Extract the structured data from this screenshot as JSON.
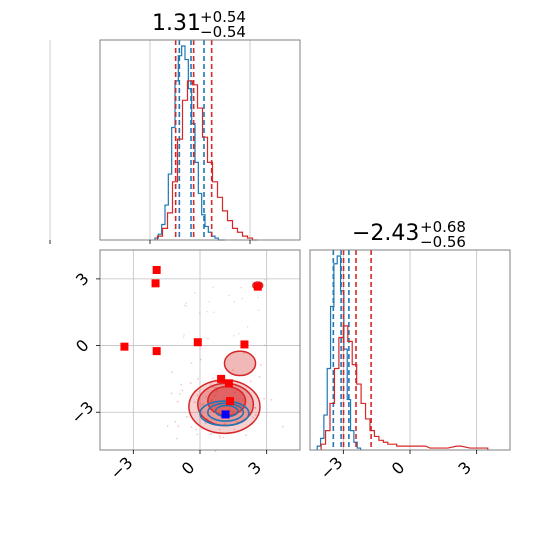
{
  "titles": {
    "p1": {
      "main": "1.31",
      "sup": "+0.54",
      "sub": "−0.54"
    },
    "p2": {
      "main": "−2.43",
      "sup": "+0.68",
      "sub": "−0.56"
    }
  },
  "colors": {
    "blue": "#1f77b4",
    "red": "#d62728",
    "frame": "#808080",
    "grid": "#c0c0c0"
  },
  "chart_data": [
    {
      "type": "histogram",
      "panel": "p1 marginal (top-left)",
      "xlim": [
        -1.5,
        4.5
      ],
      "xticks": [
        -3,
        0,
        3
      ],
      "grid": true,
      "series": [
        {
          "color": "#1f77b4",
          "bins_x": [
            0.2,
            0.3,
            0.4,
            0.5,
            0.6,
            0.7,
            0.8,
            0.9,
            1.0,
            1.1,
            1.2,
            1.3,
            1.4,
            1.5,
            1.6,
            1.7,
            1.8,
            1.9,
            2.0,
            2.1,
            2.2
          ],
          "heights": [
            0.01,
            0.03,
            0.08,
            0.18,
            0.34,
            0.58,
            0.82,
            0.95,
            1.0,
            0.93,
            0.78,
            0.6,
            0.4,
            0.24,
            0.13,
            0.07,
            0.04,
            0.02,
            0.01,
            0.0,
            0.0
          ],
          "quantile_lines": [
            0.88,
            1.23,
            1.62
          ]
        },
        {
          "color": "#d62728",
          "bins_x": [
            0.3,
            0.45,
            0.6,
            0.75,
            0.9,
            1.05,
            1.2,
            1.35,
            1.5,
            1.65,
            1.8,
            1.95,
            2.1,
            2.25,
            2.4,
            2.55,
            2.7,
            2.85,
            3.0,
            3.15
          ],
          "heights": [
            0.02,
            0.06,
            0.14,
            0.3,
            0.52,
            0.72,
            0.82,
            0.8,
            0.68,
            0.53,
            0.4,
            0.3,
            0.22,
            0.15,
            0.1,
            0.06,
            0.04,
            0.02,
            0.01,
            0.0
          ],
          "quantile_lines": [
            0.77,
            1.31,
            1.85
          ]
        }
      ]
    },
    {
      "type": "histogram",
      "panel": "p2 marginal (bottom-right)",
      "xlim": [
        -4.5,
        4.5
      ],
      "xticks": [
        -3,
        0,
        3
      ],
      "grid": true,
      "series": [
        {
          "color": "#1f77b4",
          "bins_x": [
            -4.1,
            -3.95,
            -3.8,
            -3.65,
            -3.5,
            -3.35,
            -3.2,
            -3.05,
            -2.9,
            -2.75,
            -2.6,
            -2.45,
            -2.3
          ],
          "heights": [
            0.02,
            0.06,
            0.18,
            0.42,
            0.74,
            0.96,
            1.0,
            0.82,
            0.52,
            0.26,
            0.1,
            0.04,
            0.01
          ],
          "quantile_lines": [
            -3.45,
            -3.1,
            -2.75
          ]
        },
        {
          "color": "#d62728",
          "bins_x": [
            -3.9,
            -3.7,
            -3.5,
            -3.3,
            -3.1,
            -2.9,
            -2.7,
            -2.5,
            -2.3,
            -2.1,
            -1.9,
            -1.7,
            -1.5,
            -1.3,
            -1.1,
            -0.9,
            -0.7,
            -0.5,
            -0.3,
            -0.1,
            0.1,
            0.3,
            0.6,
            1.0,
            1.6,
            2.2,
            2.8,
            3.4
          ],
          "heights": [
            0.03,
            0.1,
            0.24,
            0.42,
            0.58,
            0.64,
            0.56,
            0.44,
            0.34,
            0.24,
            0.16,
            0.1,
            0.07,
            0.05,
            0.04,
            0.03,
            0.03,
            0.02,
            0.02,
            0.02,
            0.02,
            0.02,
            0.02,
            0.01,
            0.01,
            0.02,
            0.01,
            0.01
          ],
          "quantile_lines": [
            -2.99,
            -2.43,
            -1.75
          ]
        }
      ]
    },
    {
      "type": "scatter",
      "panel": "2D contour (bottom-left)",
      "xlim": [
        -4.5,
        4.5
      ],
      "ylim": [
        -4.7,
        4.3
      ],
      "xticks": [
        -3,
        0,
        3
      ],
      "yticks": [
        -3,
        0,
        3
      ],
      "grid": true,
      "red_contours": [
        {
          "cx": 1.1,
          "cy": -2.75,
          "rx": 1.6,
          "ry": 1.2,
          "level": 3
        },
        {
          "cx": 1.15,
          "cy": -2.65,
          "rx": 1.25,
          "ry": 0.95,
          "level": 2
        },
        {
          "cx": 1.2,
          "cy": -2.5,
          "rx": 0.85,
          "ry": 0.65,
          "level": 1
        },
        {
          "cx": 1.8,
          "cy": -0.8,
          "rx": 0.7,
          "ry": 0.55,
          "level": 2
        },
        {
          "cx": 2.6,
          "cy": 2.7,
          "rx": 0.22,
          "ry": 0.16,
          "level": 2
        }
      ],
      "blue_contours": [
        {
          "cx": 1.1,
          "cy": -3.05,
          "rx": 1.1,
          "ry": 0.55
        },
        {
          "cx": 1.15,
          "cy": -3.0,
          "rx": 0.8,
          "ry": 0.4
        },
        {
          "cx": 1.2,
          "cy": -2.95,
          "rx": 0.5,
          "ry": 0.25
        }
      ],
      "red_markers": [
        {
          "x": -1.95,
          "y": 3.4
        },
        {
          "x": -2.0,
          "y": 2.8
        },
        {
          "x": -3.4,
          "y": -0.05
        },
        {
          "x": -1.95,
          "y": -0.25
        },
        {
          "x": -0.1,
          "y": 0.15
        },
        {
          "x": 2.0,
          "y": 0.05
        },
        {
          "x": 2.6,
          "y": 2.65
        },
        {
          "x": 0.95,
          "y": -1.5
        },
        {
          "x": 1.3,
          "y": -1.7
        },
        {
          "x": 1.35,
          "y": -2.5
        }
      ],
      "blue_markers": [
        {
          "x": 1.15,
          "y": -3.1
        }
      ]
    }
  ]
}
